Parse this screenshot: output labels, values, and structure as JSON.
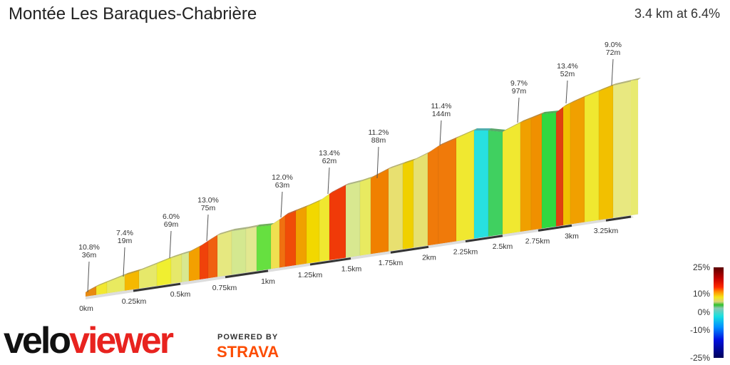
{
  "header": {
    "title": "Montée Les Baraques-Chabrière",
    "summary": "3.4 km at 6.4%"
  },
  "annotations": [
    {
      "grade": "10.8%",
      "length": "36m"
    },
    {
      "grade": "7.4%",
      "length": "19m"
    },
    {
      "grade": "6.0%",
      "length": "69m"
    },
    {
      "grade": "13.0%",
      "length": "75m"
    },
    {
      "grade": "12.0%",
      "length": "63m"
    },
    {
      "grade": "13.4%",
      "length": "62m"
    },
    {
      "grade": "11.2%",
      "length": "88m"
    },
    {
      "grade": "11.4%",
      "length": "144m"
    },
    {
      "grade": "9.7%",
      "length": "97m"
    },
    {
      "grade": "13.4%",
      "length": "52m"
    },
    {
      "grade": "9.0%",
      "length": "72m"
    }
  ],
  "distance_labels": [
    "0km",
    "0.25km",
    "0.5km",
    "0.75km",
    "1km",
    "1.25km",
    "1.5km",
    "1.75km",
    "2km",
    "2.25km",
    "2.5km",
    "2.75km",
    "3km",
    "3.25km"
  ],
  "legend": {
    "labels": [
      "25%",
      "10%",
      "0%",
      "-10%",
      "-25%"
    ]
  },
  "branding": {
    "logo_left": "velo",
    "logo_right": "viewer",
    "powered_by": "POWERED BY",
    "partner": "STRAVA"
  },
  "colors": {
    "brand_red": "#e8231f",
    "strava_orange": "#fc4c02"
  }
}
